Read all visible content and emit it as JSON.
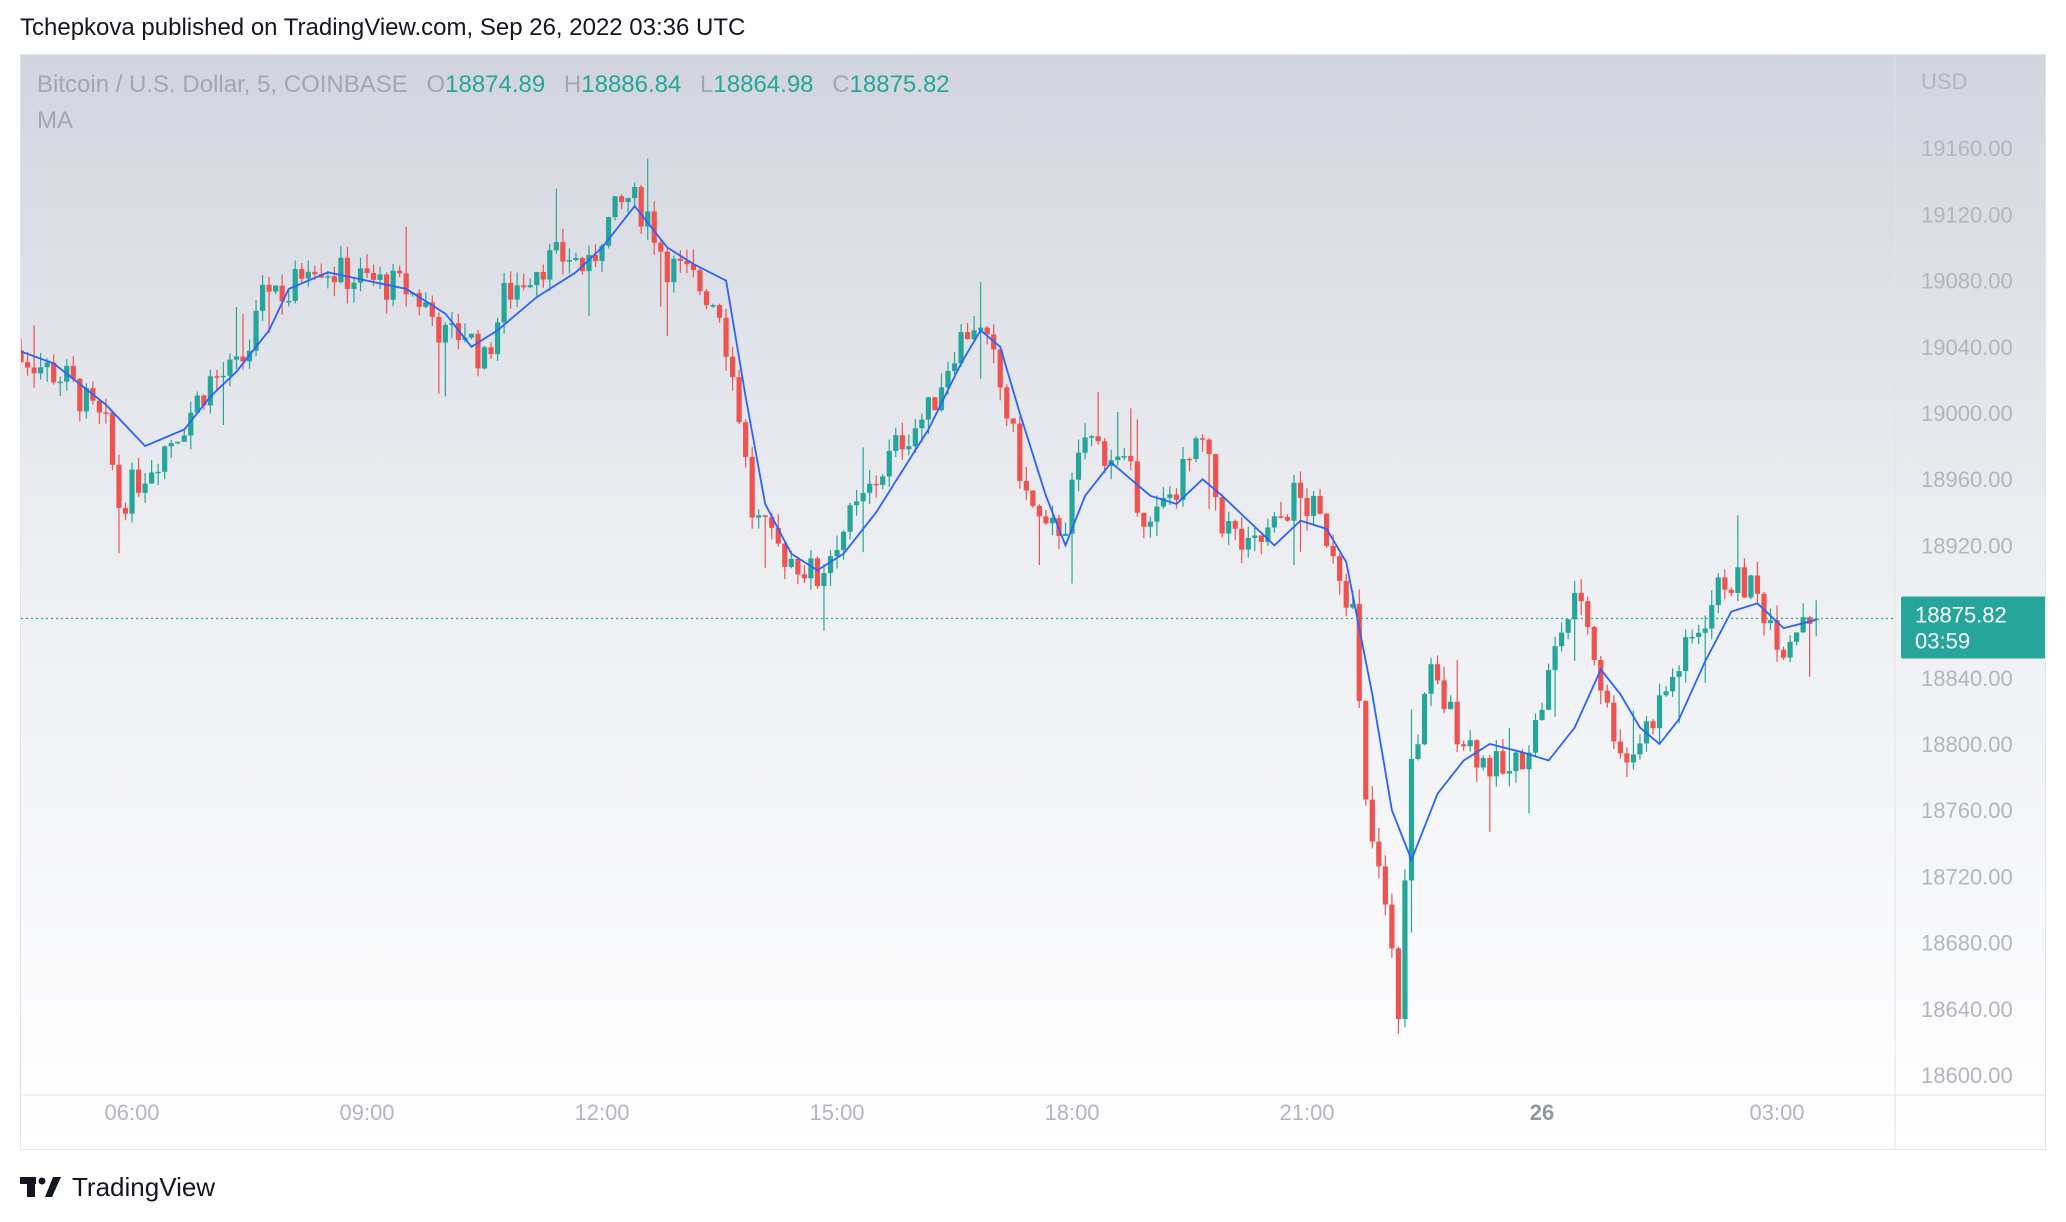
{
  "header": {
    "published_by": "Tchepkova published on TradingView.com, Sep 26, 2022 03:36 UTC"
  },
  "legend": {
    "symbol": "Bitcoin / U.S. Dollar, 5, COINBASE",
    "o_label": "O",
    "o_value": "18874.89",
    "h_label": "H",
    "h_value": "18886.84",
    "l_label": "L",
    "l_value": "18864.98",
    "c_label": "C",
    "c_value": "18875.82",
    "indicator": "MA"
  },
  "price_axis": {
    "currency": "USD",
    "labels": [
      "19160.00",
      "19120.00",
      "19080.00",
      "19040.00",
      "19000.00",
      "18960.00",
      "18920.00",
      "18840.00",
      "18800.00",
      "18760.00",
      "18720.00",
      "18680.00",
      "18640.00",
      "18600.00"
    ]
  },
  "last_price": {
    "value": "18875.82",
    "countdown": "03:59"
  },
  "time_axis": {
    "labels": [
      "06:00",
      "09:00",
      "12:00",
      "15:00",
      "18:00",
      "21:00",
      "26",
      "03:00"
    ]
  },
  "footer": {
    "brand": "TradingView"
  },
  "colors": {
    "up": "#26a69a",
    "down": "#ef5350",
    "ma": "#2962ff",
    "axis_text": "#b2b5be",
    "last_price_bg": "#26a69a"
  },
  "chart_data": {
    "type": "candlestick",
    "symbol": "Bitcoin / U.S. Dollar, 5, COINBASE",
    "interval_minutes": 5,
    "x": [
      "04:25",
      "06:00",
      "09:00",
      "12:00",
      "15:00",
      "18:00",
      "21:00",
      "26",
      "03:00",
      "03:30"
    ],
    "ylim": [
      18590,
      19195
    ],
    "close_path": [
      [
        "04:25",
        19040
      ],
      [
        "05:10",
        19020
      ],
      [
        "05:40",
        18990
      ],
      [
        "05:50",
        18945
      ],
      [
        "06:10",
        18965
      ],
      [
        "06:40",
        18995
      ],
      [
        "07:00",
        19020
      ],
      [
        "07:20",
        19025
      ],
      [
        "07:30",
        19040
      ],
      [
        "07:45",
        19080
      ],
      [
        "08:00",
        19070
      ],
      [
        "08:15",
        19095
      ],
      [
        "08:35",
        19085
      ],
      [
        "09:00",
        19080
      ],
      [
        "09:30",
        19075
      ],
      [
        "09:45",
        19065
      ],
      [
        "10:00",
        19045
      ],
      [
        "10:15",
        19050
      ],
      [
        "10:30",
        19030
      ],
      [
        "10:45",
        19070
      ],
      [
        "11:10",
        19090
      ],
      [
        "11:35",
        19095
      ],
      [
        "11:50",
        19085
      ],
      [
        "12:00",
        19110
      ],
      [
        "12:20",
        19130
      ],
      [
        "12:35",
        19120
      ],
      [
        "12:50",
        19090
      ],
      [
        "13:10",
        19080
      ],
      [
        "13:30",
        19065
      ],
      [
        "13:45",
        19000
      ],
      [
        "13:55",
        18940
      ],
      [
        "14:10",
        18920
      ],
      [
        "14:30",
        18910
      ],
      [
        "14:45",
        18900
      ],
      [
        "15:00",
        18925
      ],
      [
        "15:15",
        18940
      ],
      [
        "15:30",
        18960
      ],
      [
        "15:50",
        18985
      ],
      [
        "16:10",
        19000
      ],
      [
        "16:30",
        19040
      ],
      [
        "16:45",
        19055
      ],
      [
        "17:00",
        19030
      ],
      [
        "17:10",
        19000
      ],
      [
        "17:25",
        18950
      ],
      [
        "17:40",
        18925
      ],
      [
        "17:55",
        18935
      ],
      [
        "18:10",
        18985
      ],
      [
        "18:30",
        18975
      ],
      [
        "18:45",
        18960
      ],
      [
        "19:00",
        18930
      ],
      [
        "19:15",
        18950
      ],
      [
        "19:30",
        18970
      ],
      [
        "19:40",
        18980
      ],
      [
        "19:55",
        18935
      ],
      [
        "20:15",
        18915
      ],
      [
        "20:35",
        18930
      ],
      [
        "20:50",
        18950
      ],
      [
        "21:05",
        18940
      ],
      [
        "21:20",
        18920
      ],
      [
        "21:35",
        18880
      ],
      [
        "21:45",
        18760
      ],
      [
        "22:00",
        18700
      ],
      [
        "22:10",
        18640
      ],
      [
        "22:20",
        18790
      ],
      [
        "22:35",
        18840
      ],
      [
        "22:55",
        18810
      ],
      [
        "23:15",
        18790
      ],
      [
        "23:35",
        18780
      ],
      [
        "23:55",
        18810
      ],
      [
        "00:15",
        18870
      ],
      [
        "00:30",
        18890
      ],
      [
        "00:50",
        18820
      ],
      [
        "01:05",
        18790
      ],
      [
        "01:20",
        18810
      ],
      [
        "01:40",
        18840
      ],
      [
        "02:00",
        18870
      ],
      [
        "02:20",
        18900
      ],
      [
        "02:40",
        18895
      ],
      [
        "02:55",
        18875
      ],
      [
        "03:05",
        18860
      ],
      [
        "03:20",
        18880
      ],
      [
        "03:30",
        18876
      ]
    ],
    "ma_path": [
      [
        "04:25",
        19040
      ],
      [
        "05:00",
        19030
      ],
      [
        "05:40",
        19005
      ],
      [
        "06:10",
        18980
      ],
      [
        "06:40",
        18990
      ],
      [
        "07:00",
        19010
      ],
      [
        "07:20",
        19025
      ],
      [
        "07:45",
        19050
      ],
      [
        "08:00",
        19075
      ],
      [
        "08:30",
        19085
      ],
      [
        "09:00",
        19080
      ],
      [
        "09:30",
        19075
      ],
      [
        "10:00",
        19060
      ],
      [
        "10:20",
        19040
      ],
      [
        "10:40",
        19050
      ],
      [
        "11:10",
        19070
      ],
      [
        "11:40",
        19085
      ],
      [
        "12:00",
        19100
      ],
      [
        "12:25",
        19125
      ],
      [
        "12:50",
        19100
      ],
      [
        "13:10",
        19090
      ],
      [
        "13:35",
        19080
      ],
      [
        "13:50",
        19010
      ],
      [
        "14:05",
        18945
      ],
      [
        "14:25",
        18915
      ],
      [
        "14:45",
        18905
      ],
      [
        "15:05",
        18915
      ],
      [
        "15:30",
        18940
      ],
      [
        "15:50",
        18965
      ],
      [
        "16:10",
        18990
      ],
      [
        "16:35",
        19030
      ],
      [
        "16:50",
        19050
      ],
      [
        "17:05",
        19040
      ],
      [
        "17:20",
        19000
      ],
      [
        "17:40",
        18950
      ],
      [
        "17:55",
        18920
      ],
      [
        "18:10",
        18950
      ],
      [
        "18:30",
        18970
      ],
      [
        "18:45",
        18960
      ],
      [
        "19:00",
        18950
      ],
      [
        "19:20",
        18945
      ],
      [
        "19:40",
        18960
      ],
      [
        "19:55",
        18950
      ],
      [
        "20:15",
        18935
      ],
      [
        "20:35",
        18920
      ],
      [
        "20:55",
        18935
      ],
      [
        "21:15",
        18930
      ],
      [
        "21:30",
        18910
      ],
      [
        "21:50",
        18830
      ],
      [
        "22:05",
        18760
      ],
      [
        "22:20",
        18730
      ],
      [
        "22:40",
        18770
      ],
      [
        "23:00",
        18790
      ],
      [
        "23:20",
        18800
      ],
      [
        "23:45",
        18795
      ],
      [
        "00:05",
        18790
      ],
      [
        "00:25",
        18810
      ],
      [
        "00:45",
        18845
      ],
      [
        "01:00",
        18830
      ],
      [
        "01:15",
        18810
      ],
      [
        "01:30",
        18800
      ],
      [
        "01:45",
        18815
      ],
      [
        "02:05",
        18850
      ],
      [
        "02:25",
        18880
      ],
      [
        "02:45",
        18885
      ],
      [
        "03:05",
        18870
      ],
      [
        "03:20",
        18873
      ],
      [
        "03:30",
        18875
      ]
    ],
    "last_candle": {
      "open": 18874.89,
      "high": 18886.84,
      "low": 18864.98,
      "close": 18875.82
    },
    "indicator": "MA",
    "grid": false,
    "legend_position": "top-left"
  }
}
